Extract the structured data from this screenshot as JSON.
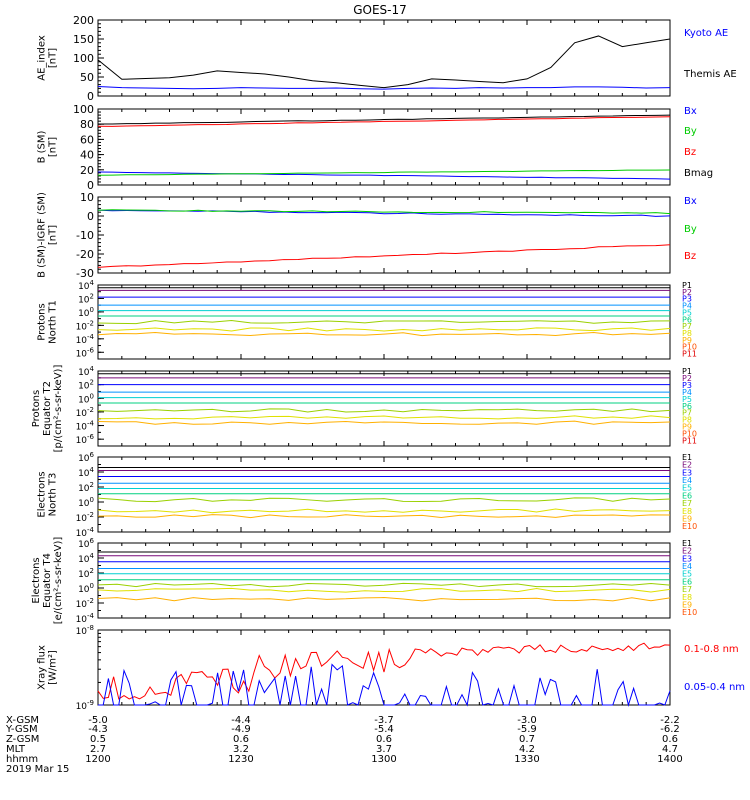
{
  "title": "GOES-17",
  "colors": {
    "black": "#000000",
    "blue": "#0000ff",
    "red": "#ff0000",
    "green": "#00cc00",
    "P1": "#000000",
    "P2": "#7a0a7a",
    "P3": "#0000ff",
    "P4": "#0090ff",
    "P5": "#00d0d0",
    "P6": "#00d080",
    "P7": "#9ad000",
    "P8": "#e0e000",
    "P9": "#ffb000",
    "P10": "#ff5000",
    "P11": "#e00000"
  },
  "footer": {
    "row_labels": [
      "X-GSM",
      "Y-GSM",
      "Z-GSM",
      "MLT",
      "hhmm",
      "2019 Mar 15"
    ],
    "columns": [
      [
        "-5.0",
        "-4.3",
        "0.5",
        "2.7",
        "1200"
      ],
      [
        "-4.4",
        "-4.9",
        "0.6",
        "3.2",
        "1230"
      ],
      [
        "-3.7",
        "-5.4",
        "0.6",
        "3.7",
        "1300"
      ],
      [
        "-3.0",
        "-5.9",
        "0.7",
        "4.2",
        "1330"
      ],
      [
        "-2.2",
        "-6.2",
        "0.6",
        "4.7",
        "1400"
      ]
    ]
  },
  "chart_data": [
    {
      "type": "line",
      "ylabel": "AE_index [nT]",
      "ylim": [
        0,
        200
      ],
      "yticks": [
        "0",
        "50",
        "100",
        "150",
        "200"
      ],
      "x": [
        1200,
        1205,
        1210,
        1215,
        1220,
        1225,
        1230,
        1235,
        1240,
        1245,
        1250,
        1255,
        1300,
        1305,
        1310,
        1315,
        1320,
        1325,
        1330,
        1335,
        1340,
        1345,
        1350,
        1355,
        1400
      ],
      "series": [
        {
          "name": "Kyoto AE",
          "color": "blue",
          "values": [
            25,
            22,
            21,
            20,
            19,
            20,
            22,
            21,
            20,
            20,
            21,
            19,
            18,
            20,
            21,
            20,
            22,
            21,
            22,
            22,
            24,
            24,
            23,
            21,
            22
          ]
        },
        {
          "name": "Themis AE",
          "color": "black",
          "values": [
            95,
            44,
            46,
            48,
            55,
            66,
            62,
            58,
            50,
            40,
            35,
            28,
            22,
            30,
            45,
            42,
            38,
            35,
            45,
            75,
            140,
            158,
            130,
            140,
            150
          ]
        }
      ]
    },
    {
      "type": "line",
      "ylabel": "B (SM) [nT]",
      "ylim": [
        0,
        100
      ],
      "yticks": [
        "0",
        "20",
        "40",
        "60",
        "80",
        "100"
      ],
      "x": [
        1200,
        1400
      ],
      "series": [
        {
          "name": "Bx",
          "color": "blue",
          "values": [
            17,
            8
          ]
        },
        {
          "name": "By",
          "color": "green",
          "values": [
            13,
            20
          ]
        },
        {
          "name": "Bz",
          "color": "red",
          "values": [
            77,
            90
          ]
        },
        {
          "name": "Bmag",
          "color": "black",
          "values": [
            80,
            92
          ]
        }
      ]
    },
    {
      "type": "line",
      "ylabel": "B (SM)-IGRF (SM) [nT]",
      "ylim": [
        -30,
        10
      ],
      "yticks": [
        "-30",
        "-20",
        "-10",
        "0",
        "10"
      ],
      "x": [
        1200,
        1400
      ],
      "series": [
        {
          "name": "Bx",
          "color": "blue",
          "values": [
            3,
            0
          ]
        },
        {
          "name": "By",
          "color": "green",
          "values": [
            3,
            1.5
          ]
        },
        {
          "name": "Bz",
          "color": "red",
          "values": [
            -27,
            -15
          ]
        }
      ]
    },
    {
      "type": "line",
      "ylabel": "Protons North T1",
      "ylog": true,
      "ylim": [
        -7,
        4
      ],
      "yticks": [
        "10-6",
        "10-4",
        "10-2",
        "100",
        "102",
        "104"
      ],
      "channels": [
        "P1",
        "P2",
        "P3",
        "P4",
        "P5",
        "P6",
        "P7",
        "P8",
        "P9",
        "P10",
        "P11"
      ],
      "series": [
        {
          "name": "P1",
          "log_values": [
            3.6,
            3.6
          ]
        },
        {
          "name": "P2",
          "log_values": [
            3.2,
            3.2
          ]
        },
        {
          "name": "P3",
          "log_values": [
            2.2,
            2.2
          ]
        },
        {
          "name": "P4",
          "log_values": [
            1.0,
            1.0
          ]
        },
        {
          "name": "P5",
          "log_values": [
            0.2,
            0.2
          ]
        },
        {
          "name": "P6",
          "log_values": [
            -0.6,
            -0.6
          ]
        },
        {
          "name": "P7",
          "log_values": [
            -1.5,
            -1.5
          ]
        },
        {
          "name": "P8",
          "log_values": [
            -2.6,
            -2.6
          ]
        },
        {
          "name": "P9",
          "log_values": [
            -3.3,
            -3.3
          ]
        }
      ]
    },
    {
      "type": "line",
      "ylabel": "Protons Equator T2 [p/(cm²-s-sr-keV)]",
      "ylog": true,
      "ylim": [
        -7,
        4
      ],
      "yticks": [
        "10-6",
        "10-4",
        "10-2",
        "100",
        "102",
        "104"
      ],
      "channels": [
        "P1",
        "P2",
        "P3",
        "P4",
        "P5",
        "P6",
        "P7",
        "P8",
        "P9",
        "P10",
        "P11"
      ],
      "series": [
        {
          "name": "P1",
          "log_values": [
            3.6,
            3.6
          ]
        },
        {
          "name": "P2",
          "log_values": [
            3.0,
            3.0
          ]
        },
        {
          "name": "P3",
          "log_values": [
            2.0,
            2.0
          ]
        },
        {
          "name": "P4",
          "log_values": [
            0.9,
            0.9
          ]
        },
        {
          "name": "P5",
          "log_values": [
            0.1,
            0.1
          ]
        },
        {
          "name": "P6",
          "log_values": [
            -0.7,
            -0.7
          ]
        },
        {
          "name": "P7",
          "log_values": [
            -1.8,
            -1.8
          ]
        },
        {
          "name": "P8",
          "log_values": [
            -2.8,
            -2.8
          ]
        },
        {
          "name": "P9",
          "log_values": [
            -3.6,
            -3.6
          ]
        }
      ]
    },
    {
      "type": "line",
      "ylabel": "Electrons North T3",
      "ylog": true,
      "ylim": [
        -4,
        6
      ],
      "yticks": [
        "10-4",
        "10-2",
        "100",
        "102",
        "104",
        "106"
      ],
      "channels": [
        "E1",
        "E2",
        "E3",
        "E4",
        "E5",
        "E6",
        "E7",
        "E8",
        "E9",
        "E10"
      ],
      "series": [
        {
          "name": "E1",
          "log_values": [
            4.6,
            4.6
          ]
        },
        {
          "name": "E2",
          "log_values": [
            4.2,
            4.2
          ]
        },
        {
          "name": "E3",
          "log_values": [
            3.4,
            3.4
          ]
        },
        {
          "name": "E4",
          "log_values": [
            2.5,
            2.5
          ]
        },
        {
          "name": "E5",
          "log_values": [
            1.8,
            1.8
          ]
        },
        {
          "name": "E6",
          "log_values": [
            1.1,
            1.1
          ]
        },
        {
          "name": "E7",
          "log_values": [
            0.3,
            0.3
          ]
        },
        {
          "name": "E8",
          "log_values": [
            -1.2,
            -1.1
          ]
        },
        {
          "name": "E9",
          "log_values": [
            -1.9,
            -1.8
          ]
        }
      ]
    },
    {
      "type": "line",
      "ylabel": "Electrons Equator T4 [e/(cm²-s-sr-keV)]",
      "ylog": true,
      "ylim": [
        -4,
        6
      ],
      "yticks": [
        "10-4",
        "10-2",
        "100",
        "102",
        "104",
        "106"
      ],
      "channels": [
        "E1",
        "E2",
        "E3",
        "E4",
        "E5",
        "E6",
        "E7",
        "E8",
        "E9",
        "E10"
      ],
      "series": [
        {
          "name": "E1",
          "log_values": [
            4.8,
            4.8
          ]
        },
        {
          "name": "E2",
          "log_values": [
            4.3,
            4.3
          ]
        },
        {
          "name": "E3",
          "log_values": [
            3.5,
            3.5
          ]
        },
        {
          "name": "E4",
          "log_values": [
            2.6,
            2.6
          ]
        },
        {
          "name": "E5",
          "log_values": [
            1.9,
            1.9
          ]
        },
        {
          "name": "E6",
          "log_values": [
            1.1,
            1.1
          ]
        },
        {
          "name": "E7",
          "log_values": [
            0.4,
            0.4
          ]
        },
        {
          "name": "E8",
          "log_values": [
            -0.3,
            -0.3
          ]
        },
        {
          "name": "E9",
          "log_values": [
            -1.5,
            -1.5
          ]
        }
      ]
    },
    {
      "type": "line",
      "ylabel": "Xray flux [W/m²]",
      "ylog": true,
      "ylim": [
        -9,
        -8
      ],
      "yticks": [
        "10-9",
        "10-8"
      ],
      "series": [
        {
          "name": "0.1-0.8 nm",
          "color": "red"
        },
        {
          "name": "0.05-0.4 nm",
          "color": "blue"
        }
      ]
    }
  ]
}
